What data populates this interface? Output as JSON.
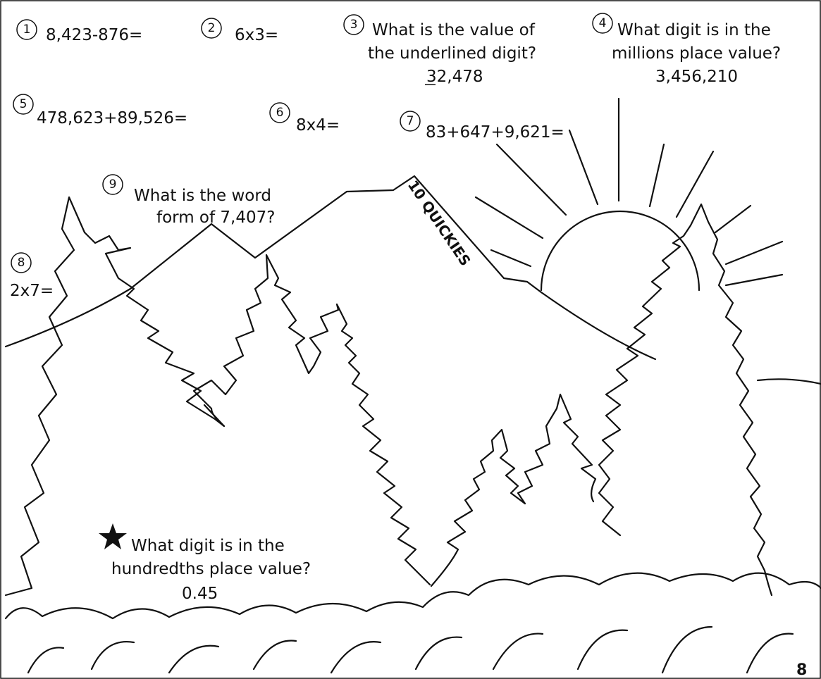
{
  "title": "10 QUICKIES",
  "page_number": "8",
  "questions": [
    {
      "number": "1",
      "lines": [
        "8,423-876="
      ]
    },
    {
      "number": "2",
      "lines": [
        "6x3="
      ]
    },
    {
      "number": "3",
      "lines": [
        "What is the value of",
        "the underlined digit?",
        "32,478"
      ]
    },
    {
      "number": "4",
      "lines": [
        "What digit is in the",
        "millions place value?",
        "3,456,210"
      ]
    },
    {
      "number": "5",
      "lines": [
        "478,623+89,526="
      ]
    },
    {
      "number": "6",
      "lines": [
        "8x4="
      ]
    },
    {
      "number": "7",
      "lines": [
        "83+647+9,621="
      ]
    },
    {
      "number": "8",
      "lines": [
        "2x7="
      ]
    },
    {
      "number": "9",
      "lines": [
        "What is the word",
        "form of 7,407?"
      ]
    }
  ],
  "bonus": {
    "lines": [
      "What digit is in the",
      "hundredths place value?",
      "0.45"
    ]
  }
}
